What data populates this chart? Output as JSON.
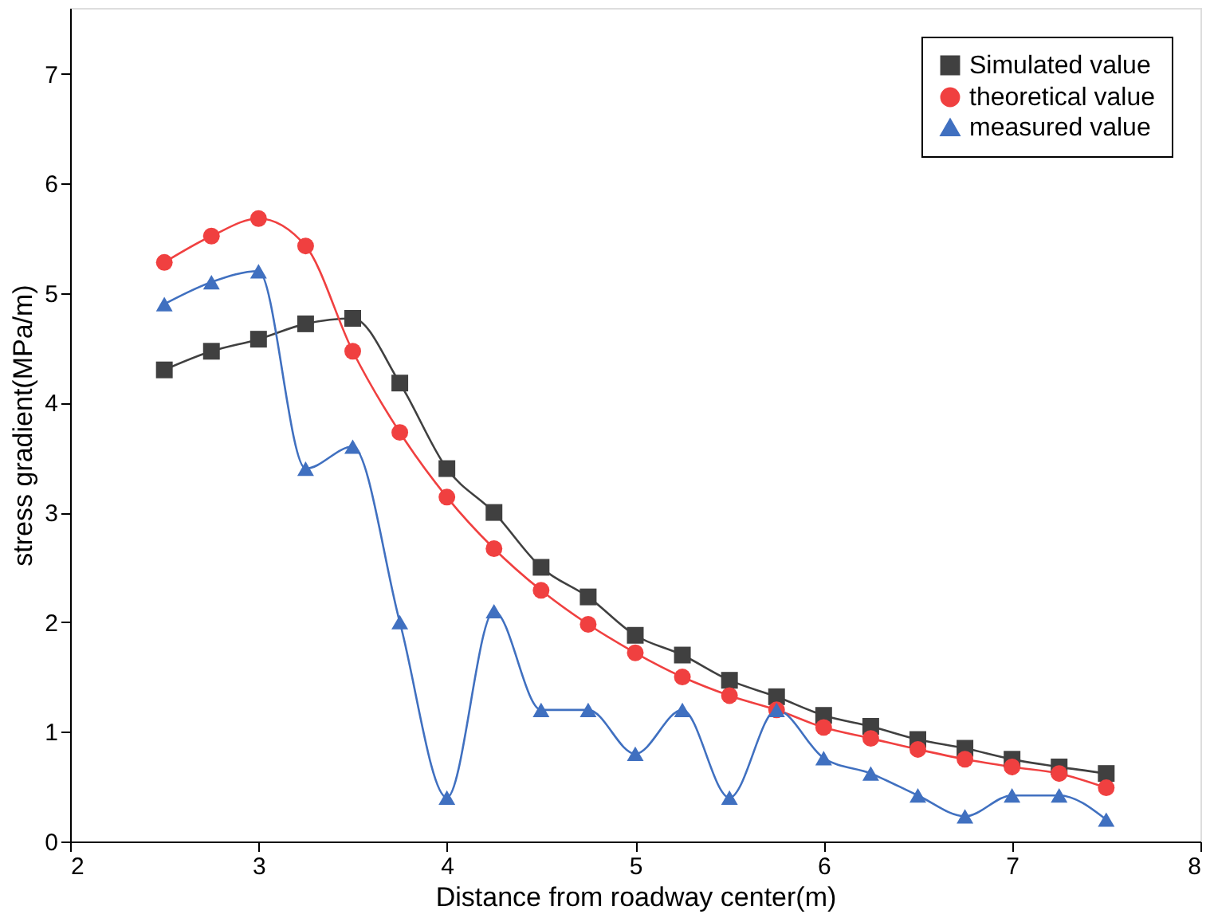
{
  "chart_data": {
    "type": "line",
    "xlabel": "Distance from roadway center(m)",
    "ylabel": "stress gradient(MPa/m)",
    "x": [
      2.5,
      2.75,
      3,
      3.25,
      3.5,
      3.75,
      4,
      4.25,
      4.5,
      4.75,
      5,
      5.25,
      5.5,
      5.75,
      6,
      6.25,
      6.5,
      6.75,
      7,
      7.25,
      7.5
    ],
    "series": [
      {
        "name": "Simulated value",
        "color": "#404040",
        "marker": "square",
        "values": [
          4.3,
          4.47,
          4.58,
          4.72,
          4.77,
          4.18,
          3.4,
          3.0,
          2.5,
          2.23,
          1.88,
          1.7,
          1.47,
          1.32,
          1.15,
          1.05,
          0.93,
          0.85,
          0.75,
          0.68,
          0.62
        ]
      },
      {
        "name": "theoretical value",
        "color": "#f04040",
        "marker": "circle",
        "values": [
          5.28,
          5.52,
          5.68,
          5.43,
          4.47,
          3.73,
          3.14,
          2.67,
          2.29,
          1.98,
          1.72,
          1.5,
          1.33,
          1.2,
          1.04,
          0.94,
          0.84,
          0.75,
          0.68,
          0.62,
          0.49
        ]
      },
      {
        "name": "measured value",
        "color": "#4070c0",
        "marker": "triangle",
        "values": [
          4.9,
          5.1,
          5.2,
          3.4,
          3.6,
          2.0,
          0.4,
          2.1,
          1.2,
          1.2,
          0.8,
          1.2,
          0.4,
          1.2,
          0.76,
          0.62,
          0.42,
          0.23,
          0.42,
          0.42,
          0.2
        ]
      }
    ],
    "xlim": [
      2,
      8
    ],
    "xticks": [
      2,
      3,
      4,
      5,
      6,
      7,
      8
    ],
    "ylim": [
      0,
      7.6
    ],
    "yticks": [
      0,
      1,
      2,
      3,
      4,
      5,
      6,
      7
    ],
    "grid": false,
    "legend": "top right",
    "line_style": "solid"
  }
}
